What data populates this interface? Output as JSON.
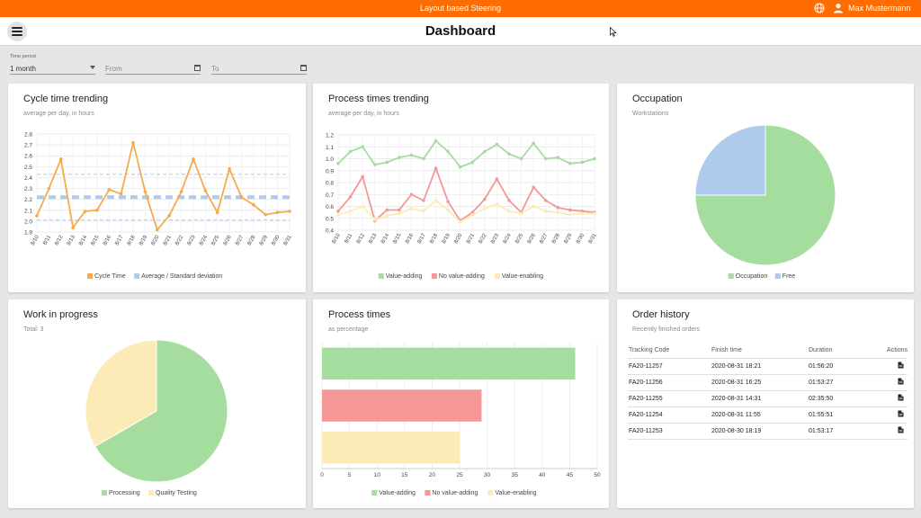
{
  "topbar": {
    "title": "Layout based Steering",
    "user_name": "Max Mustermann",
    "icons": [
      "globe-icon",
      "user-icon"
    ],
    "color": "#ff6d00"
  },
  "header": {
    "title": "Dashboard",
    "menu_icon": "menu-icon"
  },
  "filters": {
    "time_period_label": "Time period",
    "time_period_value": "1 month",
    "from_placeholder": "From",
    "to_placeholder": "To"
  },
  "colors": {
    "orange": "#f5ab4c",
    "green": "#a4dd9d",
    "red": "#f59797",
    "yellow": "#fdebb7",
    "blue": "#aecbeb"
  },
  "cards": {
    "cycle": {
      "title": "Cycle time trending",
      "subtitle": "average per day, in hours"
    },
    "process_trend": {
      "title": "Process times trending",
      "subtitle": "average per day, in hours"
    },
    "occupation": {
      "title": "Occupation",
      "subtitle": "Workstations"
    },
    "wip": {
      "title": "Work in progress",
      "subtitle": "Total: 3"
    },
    "process_times": {
      "title": "Process times",
      "subtitle": "as percentage"
    },
    "orders": {
      "title": "Order history",
      "subtitle": "Recently finished orders"
    }
  },
  "chart_data": [
    {
      "id": "cycle",
      "type": "line",
      "x": [
        "8/10",
        "8/11",
        "8/12",
        "8/13",
        "8/14",
        "8/15",
        "8/16",
        "8/17",
        "8/18",
        "8/19",
        "8/20",
        "8/21",
        "8/22",
        "8/23",
        "8/24",
        "8/25",
        "8/26",
        "8/27",
        "8/28",
        "8/29",
        "8/30",
        "8/31"
      ],
      "series": [
        {
          "name": "Cycle Time",
          "color": "#f5ab4c",
          "values": [
            2.05,
            2.3,
            2.57,
            1.94,
            2.09,
            2.1,
            2.29,
            2.25,
            2.72,
            2.27,
            1.92,
            2.05,
            2.27,
            2.57,
            2.28,
            2.08,
            2.48,
            2.22,
            2.15,
            2.06,
            2.08,
            2.09
          ]
        }
      ],
      "average": 2.22,
      "std_upper": 2.43,
      "std_lower": 2.01,
      "band_name": "Average / Standard deviation",
      "band_color": "#aecbeb",
      "ylim": [
        1.9,
        2.8
      ],
      "yticks": [
        "1.9",
        "2.0",
        "2.1",
        "2.2",
        "2.3",
        "2.4",
        "2.5",
        "2.6",
        "2.7",
        "2.8"
      ],
      "grid": true,
      "legend": "bottom"
    },
    {
      "id": "process_trend",
      "type": "line",
      "x": [
        "8/10",
        "8/11",
        "8/12",
        "8/13",
        "8/14",
        "8/15",
        "8/16",
        "8/17",
        "8/18",
        "8/19",
        "8/20",
        "8/21",
        "8/22",
        "8/23",
        "8/24",
        "8/25",
        "8/26",
        "8/27",
        "8/28",
        "8/29",
        "8/30",
        "8/31"
      ],
      "series": [
        {
          "name": "Value-adding",
          "color": "#a4dd9d",
          "values": [
            0.96,
            1.06,
            1.1,
            0.95,
            0.97,
            1.01,
            1.03,
            1.0,
            1.15,
            1.06,
            0.93,
            0.97,
            1.06,
            1.12,
            1.04,
            1.0,
            1.13,
            1.0,
            1.01,
            0.96,
            0.97,
            1.0
          ]
        },
        {
          "name": "No value-adding",
          "color": "#f59797",
          "values": [
            0.56,
            0.68,
            0.85,
            0.48,
            0.57,
            0.57,
            0.7,
            0.65,
            0.92,
            0.64,
            0.48,
            0.55,
            0.66,
            0.83,
            0.65,
            0.55,
            0.76,
            0.65,
            0.59,
            0.57,
            0.56,
            0.55
          ]
        },
        {
          "name": "Value-enabling",
          "color": "#fdebb7",
          "values": [
            0.53,
            0.56,
            0.6,
            0.49,
            0.52,
            0.54,
            0.58,
            0.56,
            0.65,
            0.57,
            0.47,
            0.53,
            0.58,
            0.62,
            0.56,
            0.54,
            0.6,
            0.56,
            0.55,
            0.53,
            0.54,
            0.54
          ]
        }
      ],
      "ylim": [
        0.4,
        1.2
      ],
      "yticks": [
        "0.4",
        "0.5",
        "0.6",
        "0.7",
        "0.8",
        "0.9",
        "1.0",
        "1.1",
        "1.2"
      ],
      "grid": true,
      "legend": "bottom"
    },
    {
      "id": "occupation",
      "type": "pie",
      "slices": [
        {
          "name": "Occupation",
          "value": 75,
          "color": "#a4dd9d"
        },
        {
          "name": "Free",
          "value": 25,
          "color": "#aecbeb"
        }
      ],
      "legend": "bottom"
    },
    {
      "id": "wip",
      "type": "pie",
      "slices": [
        {
          "name": "Processing",
          "value": 2,
          "color": "#a4dd9d"
        },
        {
          "name": "Quality Testing",
          "value": 1,
          "color": "#fdebb7"
        }
      ],
      "legend": "bottom"
    },
    {
      "id": "process_times",
      "type": "bar",
      "orientation": "horizontal",
      "series": [
        {
          "name": "Value-adding",
          "value": 46,
          "color": "#a4dd9d"
        },
        {
          "name": "No value-adding",
          "value": 29,
          "color": "#f59797"
        },
        {
          "name": "Value-enabling",
          "value": 25,
          "color": "#fdebb7"
        }
      ],
      "xlim": [
        0,
        50
      ],
      "xticks": [
        "0",
        "5",
        "10",
        "15",
        "20",
        "25",
        "30",
        "35",
        "40",
        "45",
        "50"
      ],
      "grid": true,
      "legend": "bottom"
    }
  ],
  "orders": {
    "columns": [
      "Tracking Code",
      "Finish time",
      "Duration",
      "Actions"
    ],
    "rows": [
      {
        "code": "FA20-11257",
        "finish": "2020-08-31 18:21",
        "duration": "01:56:20"
      },
      {
        "code": "FA20-11256",
        "finish": "2020-08-31 16:25",
        "duration": "01:53:27"
      },
      {
        "code": "FA20-11255",
        "finish": "2020-08-31 14:31",
        "duration": "02:35:50"
      },
      {
        "code": "FA20-11254",
        "finish": "2020-08-31 11:55",
        "duration": "01:55:51"
      },
      {
        "code": "FA20-11253",
        "finish": "2020-08-30 18:19",
        "duration": "01:53:17"
      }
    ],
    "action_icon": "document-icon"
  }
}
